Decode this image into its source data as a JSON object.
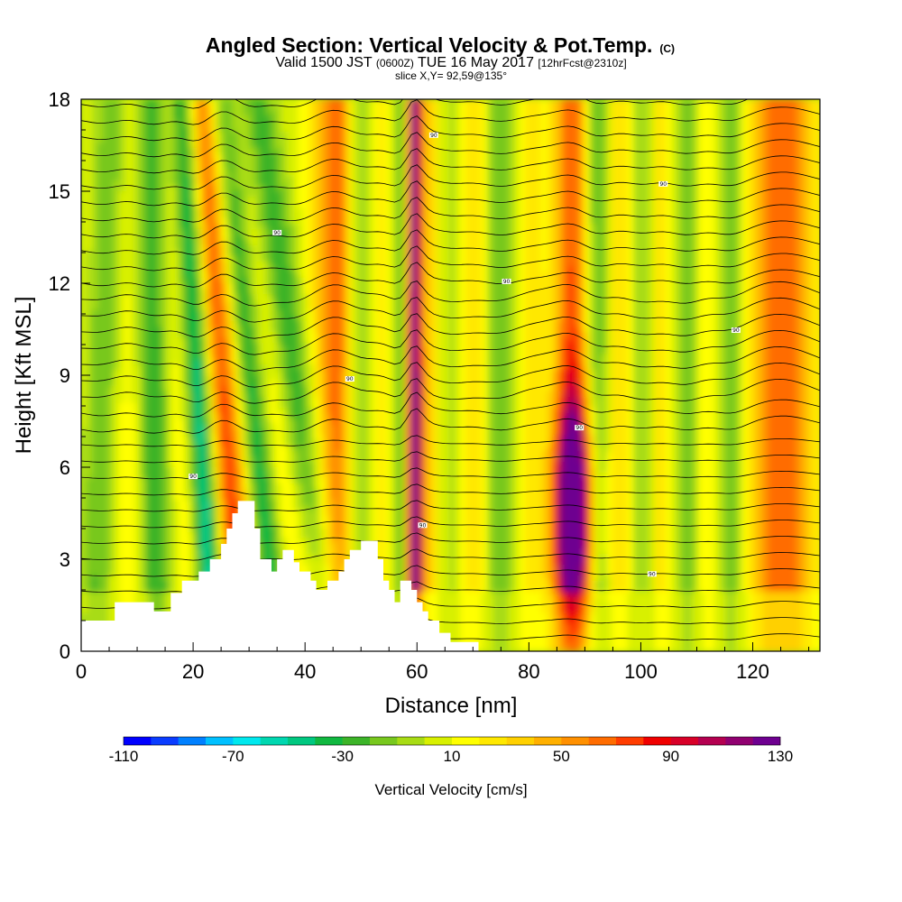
{
  "titles": {
    "main": "Angled Section: Vertical Velocity & Pot.Temp.",
    "main_unit": "(C)",
    "valid_a": "Valid 1500 JST",
    "valid_b": "(0600Z)",
    "valid_c": "TUE 16 May 2017",
    "valid_d": "[12hrFcst@2310z]",
    "slice": "slice X,Y= 92,59@135°"
  },
  "chart_data": {
    "type": "heatmap",
    "xlabel": "Distance [nm]",
    "ylabel": "Height [Kft MSL]",
    "xlim": [
      0,
      132
    ],
    "ylim": [
      0,
      18
    ],
    "x_ticks": [
      "0",
      "20",
      "40",
      "60",
      "80",
      "100",
      "120"
    ],
    "y_ticks": [
      "0",
      "3",
      "6",
      "9",
      "12",
      "15",
      "18"
    ],
    "colorbar": {
      "label": "Vertical Velocity [cm/s]",
      "tick_labels": [
        "-110",
        "-70",
        "-30",
        "10",
        "50",
        "90",
        "130"
      ],
      "min": -110,
      "max": 130,
      "colors": [
        "#0000ff",
        "#0a3cff",
        "#0080ff",
        "#00c0ff",
        "#00e8ee",
        "#00d7b0",
        "#00c880",
        "#10b840",
        "#3cb428",
        "#78c81e",
        "#a8dc14",
        "#d8f000",
        "#ffff00",
        "#ffe800",
        "#ffd000",
        "#ffb000",
        "#ff9000",
        "#ff6c00",
        "#ff3c00",
        "#f00000",
        "#d80028",
        "#b40050",
        "#900070",
        "#6e0090"
      ]
    },
    "updrafts": [
      {
        "x": 4,
        "w": 2.0,
        "v": -30
      },
      {
        "x": 8,
        "w": 2.5,
        "v": 10
      },
      {
        "x": 13,
        "w": 2.0,
        "v": -40
      },
      {
        "x": 18,
        "w": 2.5,
        "v": 15
      },
      {
        "x": 21,
        "w": 1.8,
        "v": -75
      },
      {
        "x": 25,
        "w": 2.5,
        "v": 70
      },
      {
        "x": 30,
        "w": 2.0,
        "v": -50
      },
      {
        "x": 34,
        "w": 2.2,
        "v": 20
      },
      {
        "x": 38,
        "w": 2.5,
        "v": -40
      },
      {
        "x": 42,
        "w": 2.0,
        "v": 15
      },
      {
        "x": 46,
        "w": 2.2,
        "v": 60
      },
      {
        "x": 50,
        "w": 2.5,
        "v": -30
      },
      {
        "x": 54,
        "w": 2.0,
        "v": 30
      },
      {
        "x": 57,
        "w": 1.5,
        "v": -40
      },
      {
        "x": 59.5,
        "w": 1.0,
        "v": 110
      },
      {
        "x": 62,
        "w": 2.0,
        "v": 30
      },
      {
        "x": 66,
        "w": 2.5,
        "v": -25
      },
      {
        "x": 70,
        "w": 3.0,
        "v": 30
      },
      {
        "x": 75,
        "w": 2.5,
        "v": -40
      },
      {
        "x": 80,
        "w": 3.0,
        "v": 25
      },
      {
        "x": 84,
        "w": 2.0,
        "v": -20
      },
      {
        "x": 88,
        "w": 2.8,
        "v": 70
      },
      {
        "x": 92,
        "w": 2.0,
        "v": -60
      },
      {
        "x": 96,
        "w": 2.5,
        "v": 30
      },
      {
        "x": 100,
        "w": 2.0,
        "v": -30
      },
      {
        "x": 104,
        "w": 2.5,
        "v": 25
      },
      {
        "x": 108,
        "w": 2.0,
        "v": -35
      },
      {
        "x": 112,
        "w": 2.5,
        "v": 20
      },
      {
        "x": 116,
        "w": 2.0,
        "v": -35
      },
      {
        "x": 121,
        "w": 3.0,
        "v": 25
      },
      {
        "x": 126,
        "w": 3.0,
        "v": 50
      },
      {
        "x": 130,
        "w": 2.5,
        "v": 10
      }
    ],
    "core": {
      "x": 88,
      "y": 4.5,
      "v": 135
    },
    "terrain": [
      [
        0,
        1
      ],
      [
        6,
        1
      ],
      [
        6,
        1.6
      ],
      [
        13,
        1.6
      ],
      [
        13,
        1.3
      ],
      [
        16,
        1.3
      ],
      [
        16,
        1.9
      ],
      [
        18,
        1.9
      ],
      [
        18,
        2.3
      ],
      [
        21,
        2.3
      ],
      [
        21,
        2.6
      ],
      [
        23,
        2.6
      ],
      [
        23,
        3.0
      ],
      [
        25,
        3.0
      ],
      [
        25,
        3.5
      ],
      [
        26,
        3.5
      ],
      [
        26,
        4.0
      ],
      [
        27,
        4.0
      ],
      [
        27,
        4.5
      ],
      [
        28,
        4.5
      ],
      [
        28,
        4.9
      ],
      [
        31,
        4.9
      ],
      [
        31,
        4.0
      ],
      [
        32,
        4.0
      ],
      [
        32,
        3.0
      ],
      [
        34,
        3.0
      ],
      [
        34,
        2.6
      ],
      [
        35,
        2.6
      ],
      [
        35,
        3.0
      ],
      [
        36,
        3.0
      ],
      [
        36,
        3.3
      ],
      [
        38,
        3.3
      ],
      [
        38,
        2.9
      ],
      [
        39,
        2.9
      ],
      [
        39,
        2.6
      ],
      [
        41,
        2.6
      ],
      [
        41,
        2.3
      ],
      [
        42,
        2.3
      ],
      [
        42,
        2.0
      ],
      [
        44,
        2.0
      ],
      [
        44,
        2.3
      ],
      [
        46,
        2.3
      ],
      [
        46,
        2.6
      ],
      [
        47,
        2.6
      ],
      [
        47,
        3.0
      ],
      [
        48,
        3.0
      ],
      [
        48,
        3.3
      ],
      [
        50,
        3.3
      ],
      [
        50,
        3.6
      ],
      [
        53,
        3.6
      ],
      [
        53,
        3.0
      ],
      [
        54,
        3.0
      ],
      [
        54,
        2.3
      ],
      [
        55,
        2.3
      ],
      [
        55,
        2.0
      ],
      [
        56,
        2.0
      ],
      [
        56,
        1.6
      ],
      [
        57,
        1.6
      ],
      [
        57,
        2.3
      ],
      [
        59,
        2.3
      ],
      [
        59,
        2.0
      ],
      [
        60,
        2.0
      ],
      [
        60,
        1.6
      ],
      [
        61,
        1.6
      ],
      [
        61,
        1.3
      ],
      [
        62,
        1.3
      ],
      [
        62,
        1.0
      ],
      [
        64,
        1.0
      ],
      [
        64,
        0.6
      ],
      [
        66,
        0.6
      ],
      [
        66,
        0.3
      ],
      [
        71,
        0.3
      ],
      [
        71,
        0
      ],
      [
        0,
        0
      ]
    ],
    "contour_label": "90"
  }
}
